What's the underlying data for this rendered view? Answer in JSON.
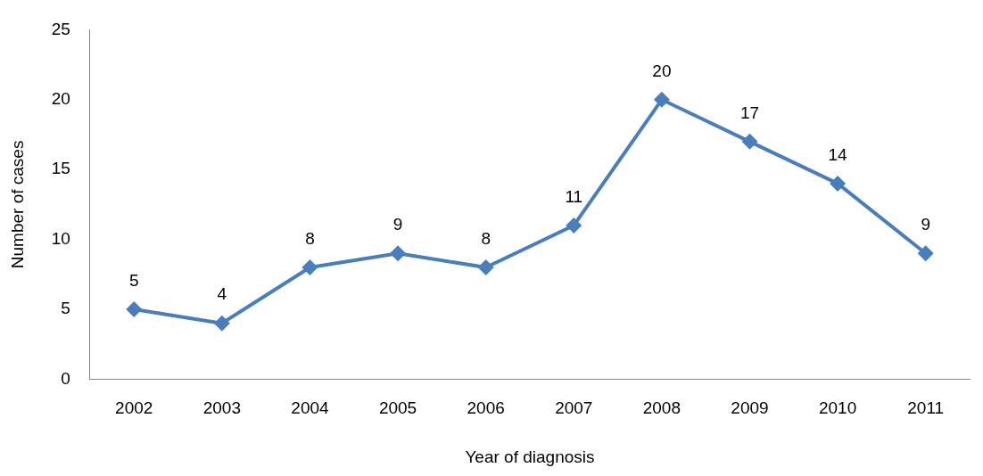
{
  "chart_data": {
    "type": "line",
    "xlabel": "Year of diagnosis",
    "ylabel": "Number of cases",
    "categories": [
      "2002",
      "2003",
      "2004",
      "2005",
      "2006",
      "2007",
      "2008",
      "2009",
      "2010",
      "2011"
    ],
    "series": [
      {
        "color": "#4a7ebb",
        "values": [
          5,
          4,
          8,
          9,
          8,
          11,
          20,
          17,
          14,
          9
        ]
      }
    ],
    "ylim": [
      0,
      25
    ],
    "yticks": [
      0,
      5,
      10,
      15,
      20,
      25
    ],
    "grid": false,
    "legend": false,
    "marker": "diamond",
    "line_style": "solid",
    "data_labels": true
  }
}
